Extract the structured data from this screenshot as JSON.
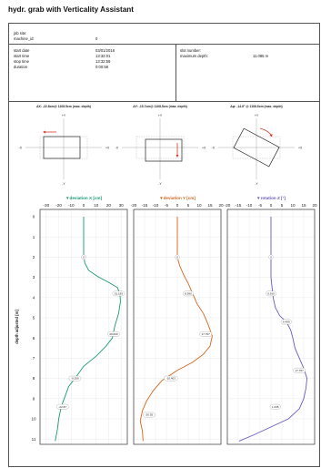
{
  "report": {
    "title": "hydr. grab with Verticality Assistant",
    "job_site_label": "job site:",
    "machine_label": "machine_id:",
    "machine_value": "0",
    "start_date_label": "start date",
    "start_date_value": "03/01/2018",
    "start_time_label": "start time",
    "start_time_value": "13:32:01",
    "stop_time_label": "stop time",
    "stop_time_value": "13:32:59",
    "duration_label": "duration",
    "duration_value": "0:00:58",
    "slot_number_label": "slot number:",
    "max_depth_label": "maximum depth:",
    "max_depth_value": "11.085 m"
  },
  "views": [
    {
      "caption": "ΔX: -22.8cm@ 1108.5cm (max. depth)",
      "plus_y": "+Y",
      "minus_y": "-Y",
      "minus_x": "-X",
      "plus_x": "+X"
    },
    {
      "caption": "ΔY: -15.7cm@ 1108.5cm (max. depth)",
      "plus_y": "+Y",
      "minus_y": "-Y",
      "minus_x": "-X",
      "plus_x": "+X"
    },
    {
      "caption": "Δφ: -14.6° @ 1108.5cm (max. depth)",
      "plus_y": "+Y",
      "minus_y": "-Y",
      "minus_x": "-X",
      "plus_x": "+X"
    }
  ],
  "colors": {
    "x": "#1a9a73",
    "y": "#d4661e",
    "z": "#6a5bbf"
  },
  "chart_data": [
    {
      "type": "line",
      "title": "▼deviation X [cm]",
      "ylabel": "depth adjusted [m]",
      "xlim": [
        -35,
        35
      ],
      "xticks": [
        -30,
        -20,
        -10,
        0,
        10,
        20,
        30
      ],
      "ylim": [
        0,
        11.3
      ],
      "yticks": [
        0,
        1,
        2,
        3,
        4,
        5,
        6,
        7,
        8,
        9,
        10,
        11
      ],
      "series": [
        {
          "points": [
            [
              0,
              0
            ],
            [
              0,
              0.5
            ],
            [
              0,
              1
            ],
            [
              0,
              1.5
            ],
            [
              0,
              1.95
            ],
            [
              1,
              2.3
            ],
            [
              4,
              2.65
            ],
            [
              11,
              2.95
            ],
            [
              20,
              3.25
            ],
            [
              27,
              3.5
            ],
            [
              29,
              3.8
            ],
            [
              29.5,
              4.2
            ],
            [
              28,
              4.8
            ],
            [
              25,
              5.4
            ],
            [
              23,
              6.0
            ],
            [
              18,
              6.4
            ],
            [
              10,
              6.9
            ],
            [
              0,
              7.4
            ],
            [
              -7,
              8.0
            ],
            [
              -12,
              8.4
            ],
            [
              -15,
              8.9
            ],
            [
              -18,
              9.4
            ],
            [
              -20,
              10.0
            ],
            [
              -21,
              10.5
            ],
            [
              -22.8,
              11.1
            ]
          ],
          "labels": [
            {
              "x": 0,
              "y": 2.0,
              "text": "0"
            },
            {
              "x": 28,
              "y": 3.8,
              "text": "31.183"
            },
            {
              "x": 24,
              "y": 5.8,
              "text": "29.000"
            },
            {
              "x": -7,
              "y": 8.0,
              "text": "-9.256"
            },
            {
              "x": -17,
              "y": 9.4,
              "text": "-22.87"
            }
          ]
        }
      ]
    },
    {
      "type": "line",
      "title": "▼deviation Y [cm]",
      "xlim": [
        -20,
        20
      ],
      "xticks": [
        -20,
        -15,
        -10,
        -5,
        0,
        5,
        10,
        15,
        20
      ],
      "ylim": [
        0,
        11.3
      ],
      "series": [
        {
          "points": [
            [
              0,
              0
            ],
            [
              0,
              0.5
            ],
            [
              0,
              1
            ],
            [
              0,
              1.5
            ],
            [
              0,
              2.0
            ],
            [
              1,
              2.4
            ],
            [
              3,
              2.9
            ],
            [
              5,
              3.3
            ],
            [
              7,
              3.8
            ],
            [
              9,
              4.3
            ],
            [
              12,
              4.8
            ],
            [
              14,
              5.3
            ],
            [
              16,
              5.9
            ],
            [
              15,
              6.4
            ],
            [
              12,
              6.8
            ],
            [
              7,
              7.2
            ],
            [
              0,
              7.6
            ],
            [
              -7,
              8.1
            ],
            [
              -11,
              8.6
            ],
            [
              -14,
              9.1
            ],
            [
              -16,
              9.6
            ],
            [
              -17,
              10.1
            ],
            [
              -16,
              10.6
            ],
            [
              -15.7,
              11.1
            ]
          ],
          "labels": [
            {
              "x": 0,
              "y": 2.0,
              "text": "0"
            },
            {
              "x": 5,
              "y": 3.8,
              "text": "8.590"
            },
            {
              "x": 13,
              "y": 5.8,
              "text": "17.797"
            },
            {
              "x": -3,
              "y": 8.0,
              "text": "-10.403"
            },
            {
              "x": -13,
              "y": 9.8,
              "text": "-20.35"
            }
          ]
        }
      ]
    },
    {
      "type": "line",
      "title": "▼rotation Z [°]",
      "xlim": [
        -20,
        20
      ],
      "xticks": [
        -20,
        -15,
        -10,
        -5,
        0,
        5,
        10,
        15,
        20
      ],
      "ylim": [
        0,
        11.3
      ],
      "series": [
        {
          "points": [
            [
              0,
              0
            ],
            [
              0,
              0.5
            ],
            [
              0,
              1
            ],
            [
              0,
              1.5
            ],
            [
              0,
              2.0
            ],
            [
              0,
              2.5
            ],
            [
              0,
              3.0
            ],
            [
              0.5,
              3.5
            ],
            [
              1,
              4.0
            ],
            [
              2,
              4.5
            ],
            [
              4,
              4.9
            ],
            [
              7,
              5.2
            ],
            [
              9,
              5.6
            ],
            [
              10,
              6.0
            ],
            [
              11,
              6.5
            ],
            [
              13,
              7.0
            ],
            [
              15,
              7.5
            ],
            [
              16.5,
              8.0
            ],
            [
              16,
              8.5
            ],
            [
              15,
              9.0
            ],
            [
              13,
              9.5
            ],
            [
              8,
              10.0
            ],
            [
              0,
              10.4
            ],
            [
              -8,
              10.8
            ],
            [
              -14.6,
              11.1
            ]
          ],
          "labels": [
            {
              "x": 0,
              "y": 2.0,
              "text": "0"
            },
            {
              "x": 0,
              "y": 3.8,
              "text": "0.910"
            },
            {
              "x": 7,
              "y": 5.2,
              "text": "6.499"
            },
            {
              "x": 13,
              "y": 7.6,
              "text": "17.707"
            },
            {
              "x": 2,
              "y": 9.4,
              "text": "1.235"
            }
          ]
        }
      ]
    }
  ]
}
